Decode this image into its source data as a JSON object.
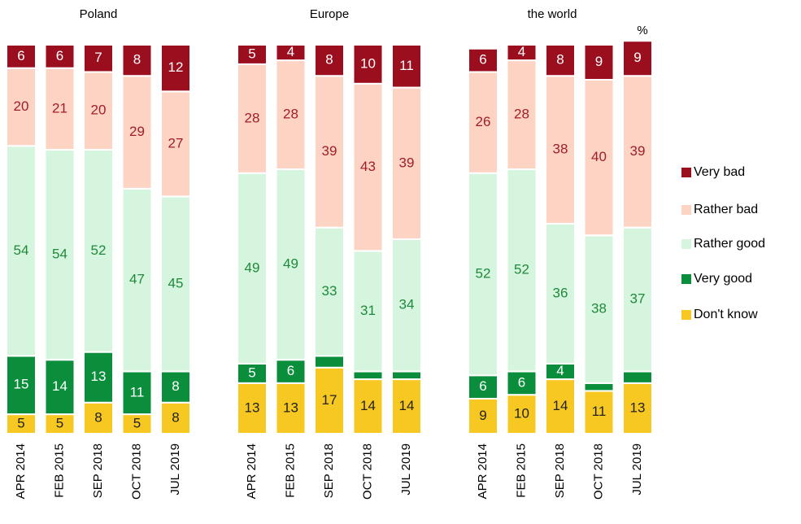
{
  "chart_data": [
    {
      "type": "stacked-bar",
      "title": "Poland",
      "categories": [
        "APR 2014",
        "FEB 2015",
        "SEP 2018",
        "OCT 2018",
        "JUL 2019"
      ],
      "series": [
        {
          "name": "Don't know",
          "color": "#f7c821",
          "values": [
            5,
            5,
            8,
            5,
            8
          ]
        },
        {
          "name": "Very good",
          "color": "#0b8e3c",
          "values": [
            15,
            14,
            13,
            11,
            8
          ]
        },
        {
          "name": "Rather good",
          "color": "#d6f5de",
          "values": [
            54,
            54,
            52,
            47,
            45
          ]
        },
        {
          "name": "Rather bad",
          "color": "#fdd3c3",
          "values": [
            20,
            21,
            20,
            29,
            27
          ]
        },
        {
          "name": "Very bad",
          "color": "#9b0e1e",
          "values": [
            6,
            6,
            7,
            8,
            12
          ]
        }
      ]
    },
    {
      "type": "stacked-bar",
      "title": "Europe",
      "categories": [
        "APR 2014",
        "FEB 2015",
        "SEP 2018",
        "OCT 2018",
        "JUL 2019"
      ],
      "series": [
        {
          "name": "Don't know",
          "color": "#f7c821",
          "values": [
            13,
            13,
            17,
            14,
            14
          ]
        },
        {
          "name": "Very good",
          "color": "#0b8e3c",
          "values": [
            5,
            6,
            3,
            2,
            2
          ]
        },
        {
          "name": "Rather good",
          "color": "#d6f5de",
          "values": [
            49,
            49,
            33,
            31,
            34
          ]
        },
        {
          "name": "Rather bad",
          "color": "#fdd3c3",
          "values": [
            28,
            28,
            39,
            43,
            39
          ]
        },
        {
          "name": "Very bad",
          "color": "#9b0e1e",
          "values": [
            5,
            4,
            8,
            10,
            11
          ]
        }
      ]
    },
    {
      "type": "stacked-bar",
      "title": "the world",
      "annotation": "%",
      "categories": [
        "APR 2014",
        "FEB 2015",
        "SEP 2018",
        "OCT 2018",
        "JUL 2019"
      ],
      "series": [
        {
          "name": "Don't know",
          "color": "#f7c821",
          "values": [
            9,
            10,
            14,
            11,
            13
          ]
        },
        {
          "name": "Very good",
          "color": "#0b8e3c",
          "values": [
            6,
            6,
            4,
            2,
            3
          ]
        },
        {
          "name": "Rather good",
          "color": "#d6f5de",
          "values": [
            52,
            52,
            36,
            38,
            37
          ]
        },
        {
          "name": "Rather bad",
          "color": "#fdd3c3",
          "values": [
            26,
            28,
            38,
            40,
            39
          ]
        },
        {
          "name": "Very bad",
          "color": "#9b0e1e",
          "values": [
            6,
            4,
            8,
            9,
            9
          ]
        }
      ]
    }
  ]
}
